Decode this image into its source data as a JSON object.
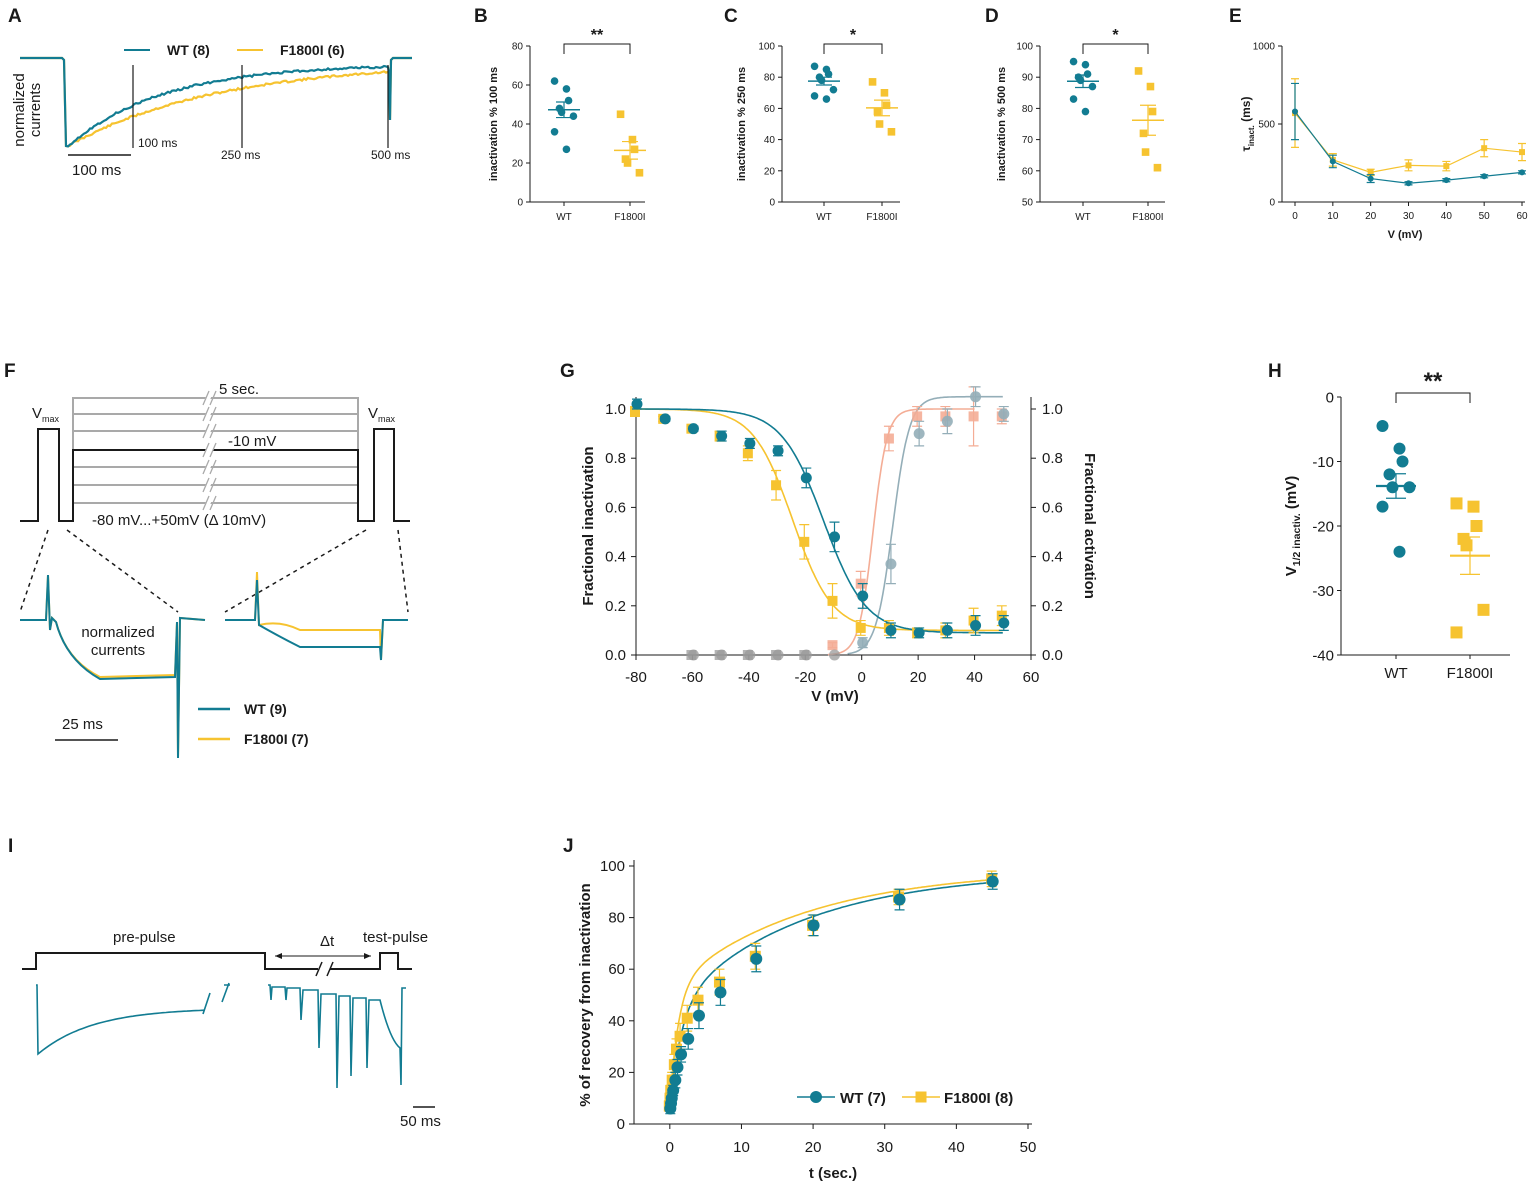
{
  "colors": {
    "wt": "#127c92",
    "mut": "#f6c330",
    "act_wt": "#94aeb8",
    "act_mut": "#f4ad96",
    "gray": "#a9a9a9",
    "ink": "#1a1a1a"
  },
  "panels": {
    "A": {
      "label": "A",
      "legend": [
        "WT (8)",
        "F1800I (6)"
      ],
      "ylabel_line1": "normalized",
      "ylabel_line2": "currents",
      "scalebar": "100 ms",
      "markers": [
        "100 ms",
        "250 ms",
        "500 ms"
      ]
    },
    "F": {
      "label": "F",
      "protocol": {
        "duration": "5 sec.",
        "holding": "-10 mV",
        "steps": "-80 mV...+50mV (Δ 10mV)",
        "vmax": "V",
        "vmax_sub": "max"
      },
      "traces_label_line1": "normalized",
      "traces_label_line2": "currents",
      "scalebar": "25 ms",
      "legend": [
        "WT (9)",
        "F1800I (7)"
      ]
    },
    "I": {
      "label": "I",
      "protocol": {
        "prepulse": "pre-pulse",
        "delta": "Δt",
        "testpulse": "test-pulse"
      },
      "scalebar": "50 ms"
    }
  },
  "chart_data": [
    {
      "panel": "B",
      "type": "scatter",
      "categories": [
        "WT",
        "F1800I"
      ],
      "series": [
        {
          "name": "WT",
          "values": [
            62,
            58,
            52,
            48,
            46,
            44,
            36,
            27
          ],
          "mean": 47.3,
          "sem": 4.0
        },
        {
          "name": "F1800I",
          "values": [
            45,
            32,
            27,
            22,
            20,
            15
          ],
          "mean": 26.5,
          "sem": 4.5
        }
      ],
      "ylabel": "inactivation %  100 ms",
      "ylim": [
        0,
        80
      ],
      "yticks": [
        0,
        20,
        40,
        60,
        80
      ],
      "significance": "**"
    },
    {
      "panel": "C",
      "type": "scatter",
      "categories": [
        "WT",
        "F1800I"
      ],
      "series": [
        {
          "name": "WT",
          "values": [
            87,
            85,
            82,
            80,
            78,
            72,
            68,
            66
          ],
          "mean": 77.5,
          "sem": 2.5
        },
        {
          "name": "F1800I",
          "values": [
            77,
            70,
            62,
            58,
            50,
            45
          ],
          "mean": 60.3,
          "sem": 5.0
        }
      ],
      "ylabel": "inactivation % 250 ms",
      "ylim": [
        0,
        100
      ],
      "yticks": [
        0,
        20,
        40,
        60,
        80,
        100
      ],
      "significance": "*"
    },
    {
      "panel": "D",
      "type": "scatter",
      "categories": [
        "WT",
        "F1800I"
      ],
      "series": [
        {
          "name": "WT",
          "values": [
            95,
            94,
            91,
            90,
            89,
            87,
            83,
            79
          ],
          "mean": 88.7,
          "sem": 2.0
        },
        {
          "name": "F1800I",
          "values": [
            92,
            87,
            79,
            72,
            66,
            61
          ],
          "mean": 76.2,
          "sem": 4.8
        }
      ],
      "ylabel": "inactivation % 500 ms",
      "ylim": [
        50,
        100
      ],
      "yticks": [
        50,
        60,
        70,
        80,
        90,
        100
      ],
      "significance": "*"
    },
    {
      "panel": "E",
      "type": "line",
      "x": [
        0,
        10,
        20,
        30,
        40,
        50,
        60
      ],
      "series": [
        {
          "name": "WT",
          "values": [
            580,
            260,
            150,
            120,
            140,
            165,
            190
          ],
          "err": [
            180,
            40,
            25,
            10,
            10,
            10,
            10
          ]
        },
        {
          "name": "F1800I",
          "values": [
            570,
            270,
            190,
            235,
            230,
            345,
            320
          ],
          "err": [
            220,
            40,
            20,
            35,
            30,
            55,
            55
          ]
        }
      ],
      "xlabel": "V (mV)",
      "ylabel": "τ",
      "ylabel_sub": "inact.",
      "ylabel_unit": " (ms)",
      "xlim": [
        0,
        60
      ],
      "ylim": [
        0,
        1000
      ],
      "xticks": [
        0,
        10,
        20,
        30,
        40,
        50,
        60
      ],
      "yticks": [
        0,
        500,
        1000
      ]
    },
    {
      "panel": "G",
      "type": "scatter",
      "x_inact": [
        -80,
        -70,
        -60,
        -50,
        -40,
        -30,
        -20,
        -10,
        0,
        10,
        20,
        30,
        40,
        50
      ],
      "series": [
        {
          "name": "WT inactivation",
          "values": [
            1.02,
            0.96,
            0.92,
            0.89,
            0.86,
            0.83,
            0.72,
            0.48,
            0.24,
            0.1,
            0.09,
            0.1,
            0.12,
            0.13
          ],
          "err": [
            0.02,
            0.01,
            0.01,
            0.02,
            0.02,
            0.02,
            0.04,
            0.06,
            0.05,
            0.03,
            0.02,
            0.03,
            0.04,
            0.03
          ],
          "fit": {
            "vhalf": -13.5,
            "k": 7.5,
            "top": 1.0,
            "bottom": 0.09
          }
        },
        {
          "name": "F1800I inactivation",
          "values": [
            0.99,
            0.96,
            0.92,
            0.89,
            0.82,
            0.69,
            0.46,
            0.22,
            0.11,
            0.11,
            0.09,
            0.1,
            0.14,
            0.16
          ],
          "err": [
            0.02,
            0.01,
            0.01,
            0.02,
            0.03,
            0.06,
            0.07,
            0.07,
            0.03,
            0.03,
            0.02,
            0.03,
            0.05,
            0.04
          ],
          "fit": {
            "vhalf": -24.5,
            "k": 7.0,
            "top": 1.0,
            "bottom": 0.1
          }
        },
        {
          "name": "WT activation",
          "x": [
            -60,
            -50,
            -40,
            -30,
            -20,
            -10,
            0,
            10,
            20,
            30,
            40,
            50
          ],
          "values": [
            0,
            0,
            0,
            0,
            0,
            0,
            0.05,
            0.37,
            0.9,
            0.95,
            1.05,
            0.98
          ],
          "err": [
            0,
            0,
            0,
            0,
            0,
            0,
            0.02,
            0.08,
            0.05,
            0.05,
            0.04,
            0.03
          ],
          "fit": {
            "vhalf": 11,
            "k": 3
          }
        },
        {
          "name": "F1800I activation",
          "x": [
            -60,
            -50,
            -40,
            -30,
            -20,
            -10,
            0,
            10,
            20,
            30,
            40,
            50
          ],
          "values": [
            0,
            0,
            0,
            0,
            0,
            0.04,
            0.29,
            0.88,
            0.97,
            0.97,
            0.97,
            0.97
          ],
          "err": [
            0,
            0,
            0,
            0,
            0,
            0.01,
            0.05,
            0.05,
            0.04,
            0.04,
            0.12,
            0.03
          ],
          "fit": {
            "vhalf": 4,
            "k": 2.5
          }
        }
      ],
      "xlabel": "V (mV)",
      "ylabel": "Fractional inactivation",
      "y2label": "Fractional activation",
      "xlim": [
        -80,
        60
      ],
      "ylim": [
        0,
        1.0
      ],
      "xticks": [
        -80,
        -60,
        -40,
        -20,
        0,
        20,
        40,
        60
      ],
      "yticks": [
        0.0,
        0.2,
        0.4,
        0.6,
        0.8,
        1.0
      ],
      "ytick_labels": [
        "0.0",
        "0.2",
        "0.4",
        "0.6",
        "0.8",
        "1.0"
      ]
    },
    {
      "panel": "H",
      "type": "scatter",
      "categories": [
        "WT",
        "F1800I"
      ],
      "series": [
        {
          "name": "WT",
          "values": [
            -4.5,
            -8,
            -10,
            -12,
            -14,
            -14,
            -17,
            -24
          ],
          "mean": -13.8,
          "sem": 1.9
        },
        {
          "name": "F1800I",
          "values": [
            -16.5,
            -17,
            -20,
            -22,
            -23,
            -33,
            -36.5
          ],
          "mean": -24.6,
          "sem": 2.9
        }
      ],
      "ylabel": "V",
      "ylabel_sub": "1/2 inactiv.",
      "ylabel_unit": " (mV)",
      "ylim": [
        -40,
        0
      ],
      "yticks": [
        -40,
        -30,
        -20,
        -10,
        0
      ],
      "significance": "**"
    },
    {
      "panel": "J",
      "type": "scatter",
      "x": [
        0,
        0.1,
        0.2,
        0.4,
        0.7,
        1.0,
        1.5,
        2.5,
        4,
        7,
        12,
        20,
        32,
        45
      ],
      "series": [
        {
          "name": "WT (7)",
          "values": [
            6,
            8,
            10,
            13,
            17,
            22,
            27,
            33,
            42,
            51,
            64,
            77,
            87,
            94
          ],
          "err": [
            2,
            2,
            2,
            2,
            3,
            3,
            3,
            4,
            5,
            5,
            5,
            4,
            4,
            3
          ]
        },
        {
          "name": "F1800I (8)",
          "values": [
            7,
            10,
            13,
            17,
            23,
            29,
            34,
            41,
            48,
            55,
            65,
            77,
            88,
            95
          ],
          "err": [
            2,
            2,
            2,
            3,
            4,
            4,
            5,
            5,
            5,
            5,
            5,
            4,
            3,
            3
          ]
        }
      ],
      "xlabel": "t (sec.)",
      "ylabel": "% of recovery from inactivation",
      "xlim": [
        -5,
        50
      ],
      "ylim": [
        0,
        100
      ],
      "xticks": [
        0,
        10,
        20,
        30,
        40,
        50
      ],
      "yticks": [
        0,
        20,
        40,
        60,
        80,
        100
      ]
    }
  ]
}
